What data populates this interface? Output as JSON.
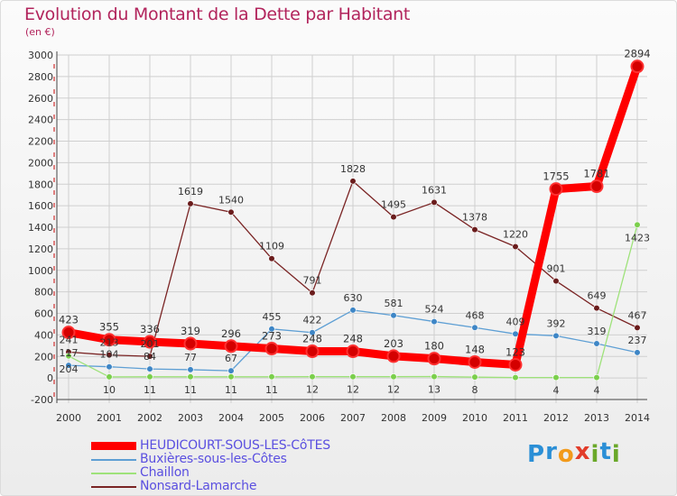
{
  "header": {
    "title": "Evolution du Montant de la Dette par Habitant",
    "unit": "(en €)"
  },
  "colors": {
    "title": "#b2245c",
    "legend_text": "#5a4fe0",
    "axis_text": "#333333",
    "grid": "#cfcfcf"
  },
  "logo": {
    "text": "Proxiti",
    "letters": [
      {
        "ch": "P",
        "color": "#2b8fd6"
      },
      {
        "ch": "r",
        "color": "#2b8fd6"
      },
      {
        "ch": "o",
        "color": "#f29a1b"
      },
      {
        "ch": "x",
        "color": "#e23c2a"
      },
      {
        "ch": "i",
        "color": "#6aa829"
      },
      {
        "ch": "t",
        "color": "#2b8fd6"
      },
      {
        "ch": "i",
        "color": "#6aa829"
      }
    ]
  },
  "chart_data": {
    "type": "line",
    "title": "Evolution du Montant de la Dette par Habitant",
    "subtitle": "(en €)",
    "xlabel": "",
    "ylabel": "",
    "x": [
      2000,
      2001,
      2002,
      2003,
      2004,
      2005,
      2006,
      2007,
      2008,
      2009,
      2010,
      2011,
      2012,
      2013,
      2014
    ],
    "ylim": [
      -200,
      3000
    ],
    "yticks": [
      -200,
      0,
      200,
      400,
      600,
      800,
      1000,
      1200,
      1400,
      1600,
      1800,
      2000,
      2200,
      2400,
      2600,
      2800,
      3000
    ],
    "grid": true,
    "legend_position": "bottom-left",
    "series": [
      {
        "name": "HEUDICOURT-SOUS-LES-CôTES",
        "color": "#ff0000",
        "dot": "#d40000",
        "width": 9,
        "r": 6.5,
        "values": [
          423,
          355,
          336,
          319,
          296,
          273,
          248,
          248,
          203,
          180,
          148,
          123,
          1755,
          1781,
          2894
        ],
        "labels": [
          "423",
          "355",
          "336",
          "319",
          "296",
          "273",
          "248",
          "248",
          "203",
          "180",
          "148",
          "123",
          "1755",
          "1781",
          "2894"
        ]
      },
      {
        "name": "Buxières-sous-les-Côtes",
        "color": "#5e9fd4",
        "dot": "#3e86c6",
        "width": 1.3,
        "r": 3.3,
        "values": [
          117,
          104,
          84,
          77,
          67,
          455,
          422,
          630,
          581,
          524,
          468,
          409,
          392,
          319,
          237
        ],
        "labels": [
          "117",
          "104",
          "84",
          "77",
          "67",
          "455",
          "422",
          "630",
          "581",
          "524",
          "468",
          "409",
          "392",
          "319",
          "237"
        ]
      },
      {
        "name": "Chaillon",
        "color": "#9ee27a",
        "dot": "#7bcf4c",
        "width": 1.3,
        "r": 3.3,
        "values": [
          204,
          10,
          11,
          11,
          11,
          11,
          12,
          12,
          12,
          13,
          8,
          4,
          4,
          4,
          1423
        ],
        "labels": [
          "204",
          "10",
          "11",
          "11",
          "11",
          "11",
          "12",
          "12",
          "12",
          "13",
          "8",
          "",
          "4",
          "4",
          "1423"
        ]
      },
      {
        "name": "Nonsard-Lamarche",
        "color": "#7a2424",
        "dot": "#6a1c1c",
        "width": 1.3,
        "r": 3.3,
        "values": [
          241,
          213,
          201,
          1619,
          1540,
          1109,
          791,
          1828,
          1495,
          1631,
          1378,
          1220,
          901,
          649,
          467
        ],
        "labels": [
          "241",
          "213",
          "201",
          "1619",
          "1540",
          "1109",
          "791",
          "1828",
          "1495",
          "1631",
          "1378",
          "1220",
          "901",
          "649",
          "467"
        ]
      }
    ]
  }
}
